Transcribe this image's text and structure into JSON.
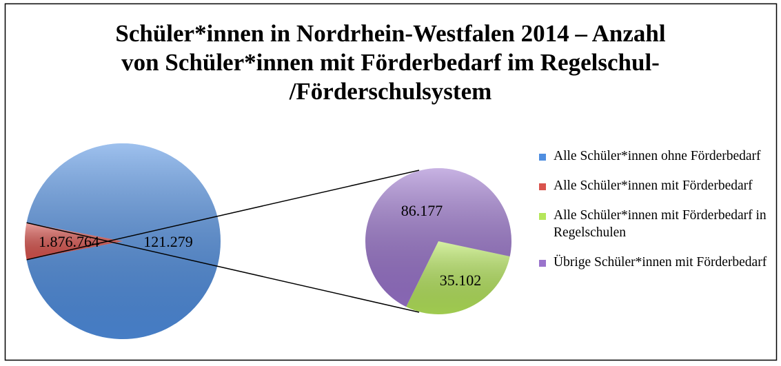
{
  "chart_data": {
    "type": "pie_of_pie",
    "title": "Schüler*innen in Nordrhein-Westfalen 2014 – Anzahl\nvon Schüler*innen mit Förderbedarf im Regelschul-\n/Förderschulsystem",
    "pie": {
      "categories": [
        "Alle Schüler*innen ohne Förderbedarf",
        "Alle Schüler*innen mit Förderbedarf"
      ],
      "values": [
        1876764,
        121279
      ],
      "value_labels": [
        "1.876.764",
        "121.279"
      ],
      "colors": [
        "#4f8ee0",
        "#d9534d"
      ]
    },
    "sub_pie": {
      "categories": [
        "Alle Schüler*innen mit Förderbedarf in Regelschulen",
        "Übrige Schüler*innen mit Förderbedarf"
      ],
      "values": [
        35102,
        86177
      ],
      "value_labels": [
        "35.102",
        "86.177"
      ],
      "colors": [
        "#b5e65a",
        "#9a74cc"
      ]
    }
  }
}
